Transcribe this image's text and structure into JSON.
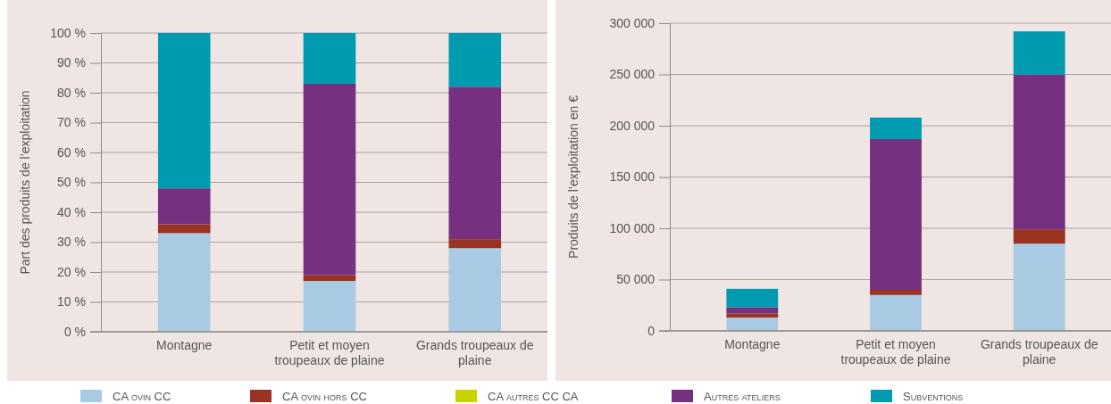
{
  "chart_data": [
    {
      "type": "bar",
      "stacked": true,
      "ylabel": "Part des produits de l’exploitation",
      "categories": [
        "Montagne",
        "Petit et moyen troupeaux de plaine",
        "Grands troupeaux de plaine"
      ],
      "series": [
        {
          "name": "CA ovin CC",
          "color": "#a8cbe3",
          "values": [
            33,
            17,
            28
          ]
        },
        {
          "name": "CA ovin hors CC",
          "color": "#9a3322",
          "values": [
            3,
            2,
            3
          ]
        },
        {
          "name": "CA autres CC CA",
          "color": "#c8d400",
          "values": [
            0,
            0,
            0
          ]
        },
        {
          "name": "Autres ateliers",
          "color": "#753180",
          "values": [
            12,
            64,
            51
          ]
        },
        {
          "name": "Subventions",
          "color": "#009bb0",
          "values": [
            52,
            17,
            18
          ]
        }
      ],
      "ylim": [
        0,
        100
      ],
      "yticks": [
        {
          "value": 0,
          "label": "0 %"
        },
        {
          "value": 10,
          "label": "10 %"
        },
        {
          "value": 20,
          "label": "20 %"
        },
        {
          "value": 30,
          "label": "30 %"
        },
        {
          "value": 40,
          "label": "40 %"
        },
        {
          "value": 50,
          "label": "50 %"
        },
        {
          "value": 60,
          "label": "60 %"
        },
        {
          "value": 70,
          "label": "70 %"
        },
        {
          "value": 80,
          "label": "80 %"
        },
        {
          "value": 90,
          "label": "90 %"
        },
        {
          "value": 100,
          "label": "100 %"
        }
      ],
      "grid": "y",
      "legend": "bottom"
    },
    {
      "type": "bar",
      "stacked": true,
      "ylabel": "Produits de l’exploitation en €",
      "categories": [
        "Montagne",
        "Petit et moyen troupeaux de plaine",
        "Grands troupeaux de plaine"
      ],
      "series": [
        {
          "color": "#a8cbe3",
          "values": [
            13000,
            35000,
            85000
          ]
        },
        {
          "color": "#9a3322",
          "values": [
            4000,
            5000,
            14000
          ]
        },
        {
          "color": "#c8d400",
          "values": [
            0,
            0,
            0
          ]
        },
        {
          "color": "#753180",
          "values": [
            6000,
            147000,
            151000
          ]
        },
        {
          "color": "#009bb0",
          "values": [
            18000,
            21000,
            42000
          ]
        }
      ],
      "ylim": [
        0,
        300000
      ],
      "yticks": [
        0,
        {
          "value": 50000,
          "label": "50 000"
        },
        {
          "value": 100000,
          "label": "100 000"
        },
        {
          "value": 150000,
          "label": "150 000"
        },
        {
          "value": 200000,
          "label": "200 000"
        },
        {
          "value": 250000,
          "label": "250 000"
        },
        {
          "value": 300000,
          "label": "300 000"
        }
      ],
      "grid": "y",
      "legend": false
    }
  ]
}
